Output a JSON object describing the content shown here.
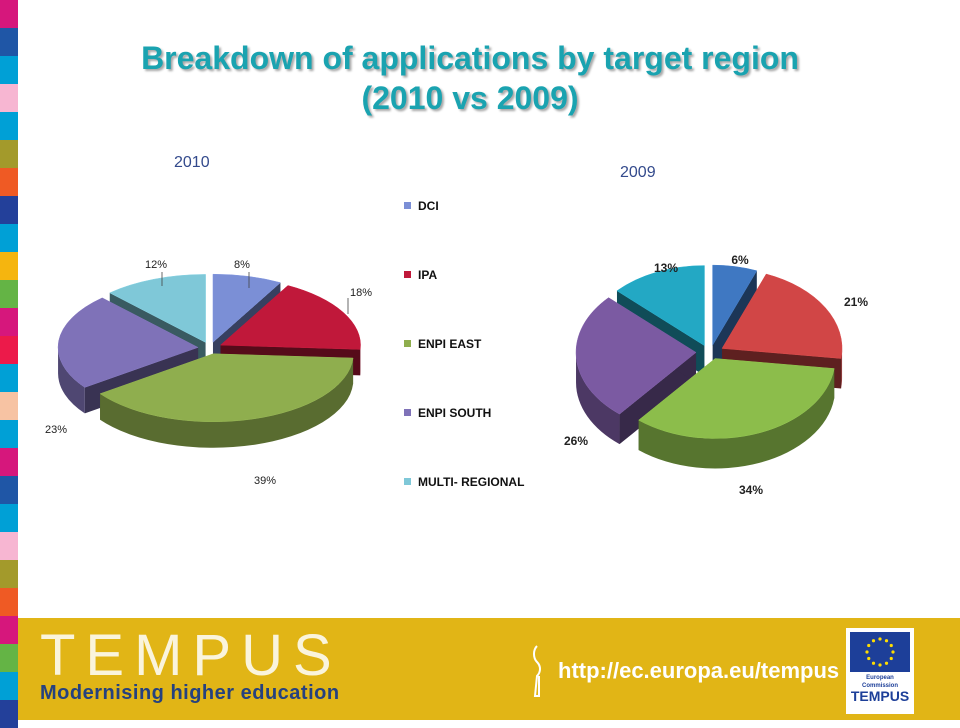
{
  "title_line1": "Breakdown of applications by target region",
  "title_line2": "(2010 vs 2009)",
  "stripe_colors": [
    "#d6177c",
    "#1f56a6",
    "#00a0d6",
    "#f7b6d2",
    "#00a0d6",
    "#a39a2b",
    "#ef5a24",
    "#23409a",
    "#00a0d6",
    "#f5b50f",
    "#64b445",
    "#d6177c",
    "#ec1a4a",
    "#00a0d6",
    "#f7c3a3",
    "#00a0d6",
    "#d6177c",
    "#1f56a6",
    "#00a0d6",
    "#f7b6d2",
    "#a39a2b",
    "#ef5a24",
    "#d6177c",
    "#64b445",
    "#00a0d6",
    "#23409a"
  ],
  "chart_data": [
    {
      "type": "pie",
      "title": "2010",
      "categories": [
        "DCI",
        "IPA",
        "ENPI EAST",
        "ENPI SOUTH",
        "MULTI-REGIONAL"
      ],
      "values": [
        8,
        18,
        39,
        23,
        12
      ],
      "data_labels": [
        "8%",
        "18%",
        "39%",
        "23%",
        "12%"
      ],
      "colors": [
        "#7b8fd6",
        "#c0183a",
        "#8fae4e",
        "#7f72b8",
        "#7fc8d8"
      ],
      "exploded": true,
      "three_d": true,
      "legend": "right"
    },
    {
      "type": "pie",
      "title": "2009",
      "categories": [
        "DCI",
        "IPA",
        "ENPI EAST",
        "ENPI SOUTH",
        "MULTI-REGIONAL"
      ],
      "values": [
        6,
        21,
        34,
        26,
        13
      ],
      "data_labels": [
        "6%",
        "21%",
        "34%",
        "26%",
        "13%"
      ],
      "colors": [
        "#3f78c2",
        "#d14646",
        "#8cbd4b",
        "#7b5aa2",
        "#23a8c4"
      ],
      "exploded": true,
      "three_d": true
    }
  ],
  "legend": {
    "items": [
      {
        "label": "DCI",
        "color": "#7b8fd6"
      },
      {
        "label": "IPA",
        "color": "#c0183a"
      },
      {
        "label": "ENPI EAST",
        "color": "#8fae4e"
      },
      {
        "label": "ENPI SOUTH",
        "color": "#7f72b8"
      },
      {
        "label": "MULTI- REGIONAL",
        "color": "#7fc8d8"
      }
    ]
  },
  "footer": {
    "logo_text": "TEMPUS",
    "tagline": "Modernising higher education",
    "url": "http://ec.europa.eu/tempus",
    "eu_caption": "European Commission",
    "eu_program": "TEMPUS",
    "background": "#e1b516"
  }
}
